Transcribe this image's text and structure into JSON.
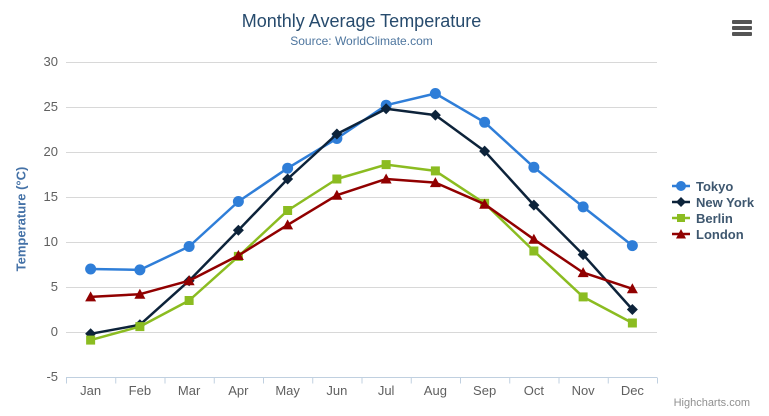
{
  "credits": "Highcharts.com",
  "theme": {
    "title_color": "#274b6d",
    "subtitle_color": "#4d759e",
    "axis_title_color": "#4572a7",
    "tick_label_color": "#606060",
    "gridline_color": "#d8d8d8",
    "axis_line_color": "#c0d0e0",
    "legend_text_color": "#3e576f",
    "credits_color": "#909090",
    "menu_icon_color": "#555555"
  },
  "chart_data": {
    "type": "line",
    "title": "Monthly Average Temperature",
    "subtitle": "Source: WorldClimate.com",
    "xlabel": "",
    "ylabel": "Temperature (°C)",
    "categories": [
      "Jan",
      "Feb",
      "Mar",
      "Apr",
      "May",
      "Jun",
      "Jul",
      "Aug",
      "Sep",
      "Oct",
      "Nov",
      "Dec"
    ],
    "ylim": [
      -5,
      30
    ],
    "ytick_step": 5,
    "grid": true,
    "legend_position": "right",
    "series": [
      {
        "name": "Tokyo",
        "color": "#2f7ed8",
        "marker": "circle",
        "values": [
          7.0,
          6.9,
          9.5,
          14.5,
          18.2,
          21.5,
          25.2,
          26.5,
          23.3,
          18.3,
          13.9,
          9.6
        ]
      },
      {
        "name": "New York",
        "color": "#0d233a",
        "marker": "diamond",
        "values": [
          -0.2,
          0.8,
          5.7,
          11.3,
          17.0,
          22.0,
          24.8,
          24.1,
          20.1,
          14.1,
          8.6,
          2.5
        ]
      },
      {
        "name": "Berlin",
        "color": "#8bbc21",
        "marker": "square",
        "values": [
          -0.9,
          0.6,
          3.5,
          8.4,
          13.5,
          17.0,
          18.6,
          17.9,
          14.3,
          9.0,
          3.9,
          1.0
        ]
      },
      {
        "name": "London",
        "color": "#910000",
        "marker": "triangle",
        "values": [
          3.9,
          4.2,
          5.7,
          8.5,
          11.9,
          15.2,
          17.0,
          16.6,
          14.2,
          10.3,
          6.6,
          4.8
        ]
      }
    ]
  }
}
